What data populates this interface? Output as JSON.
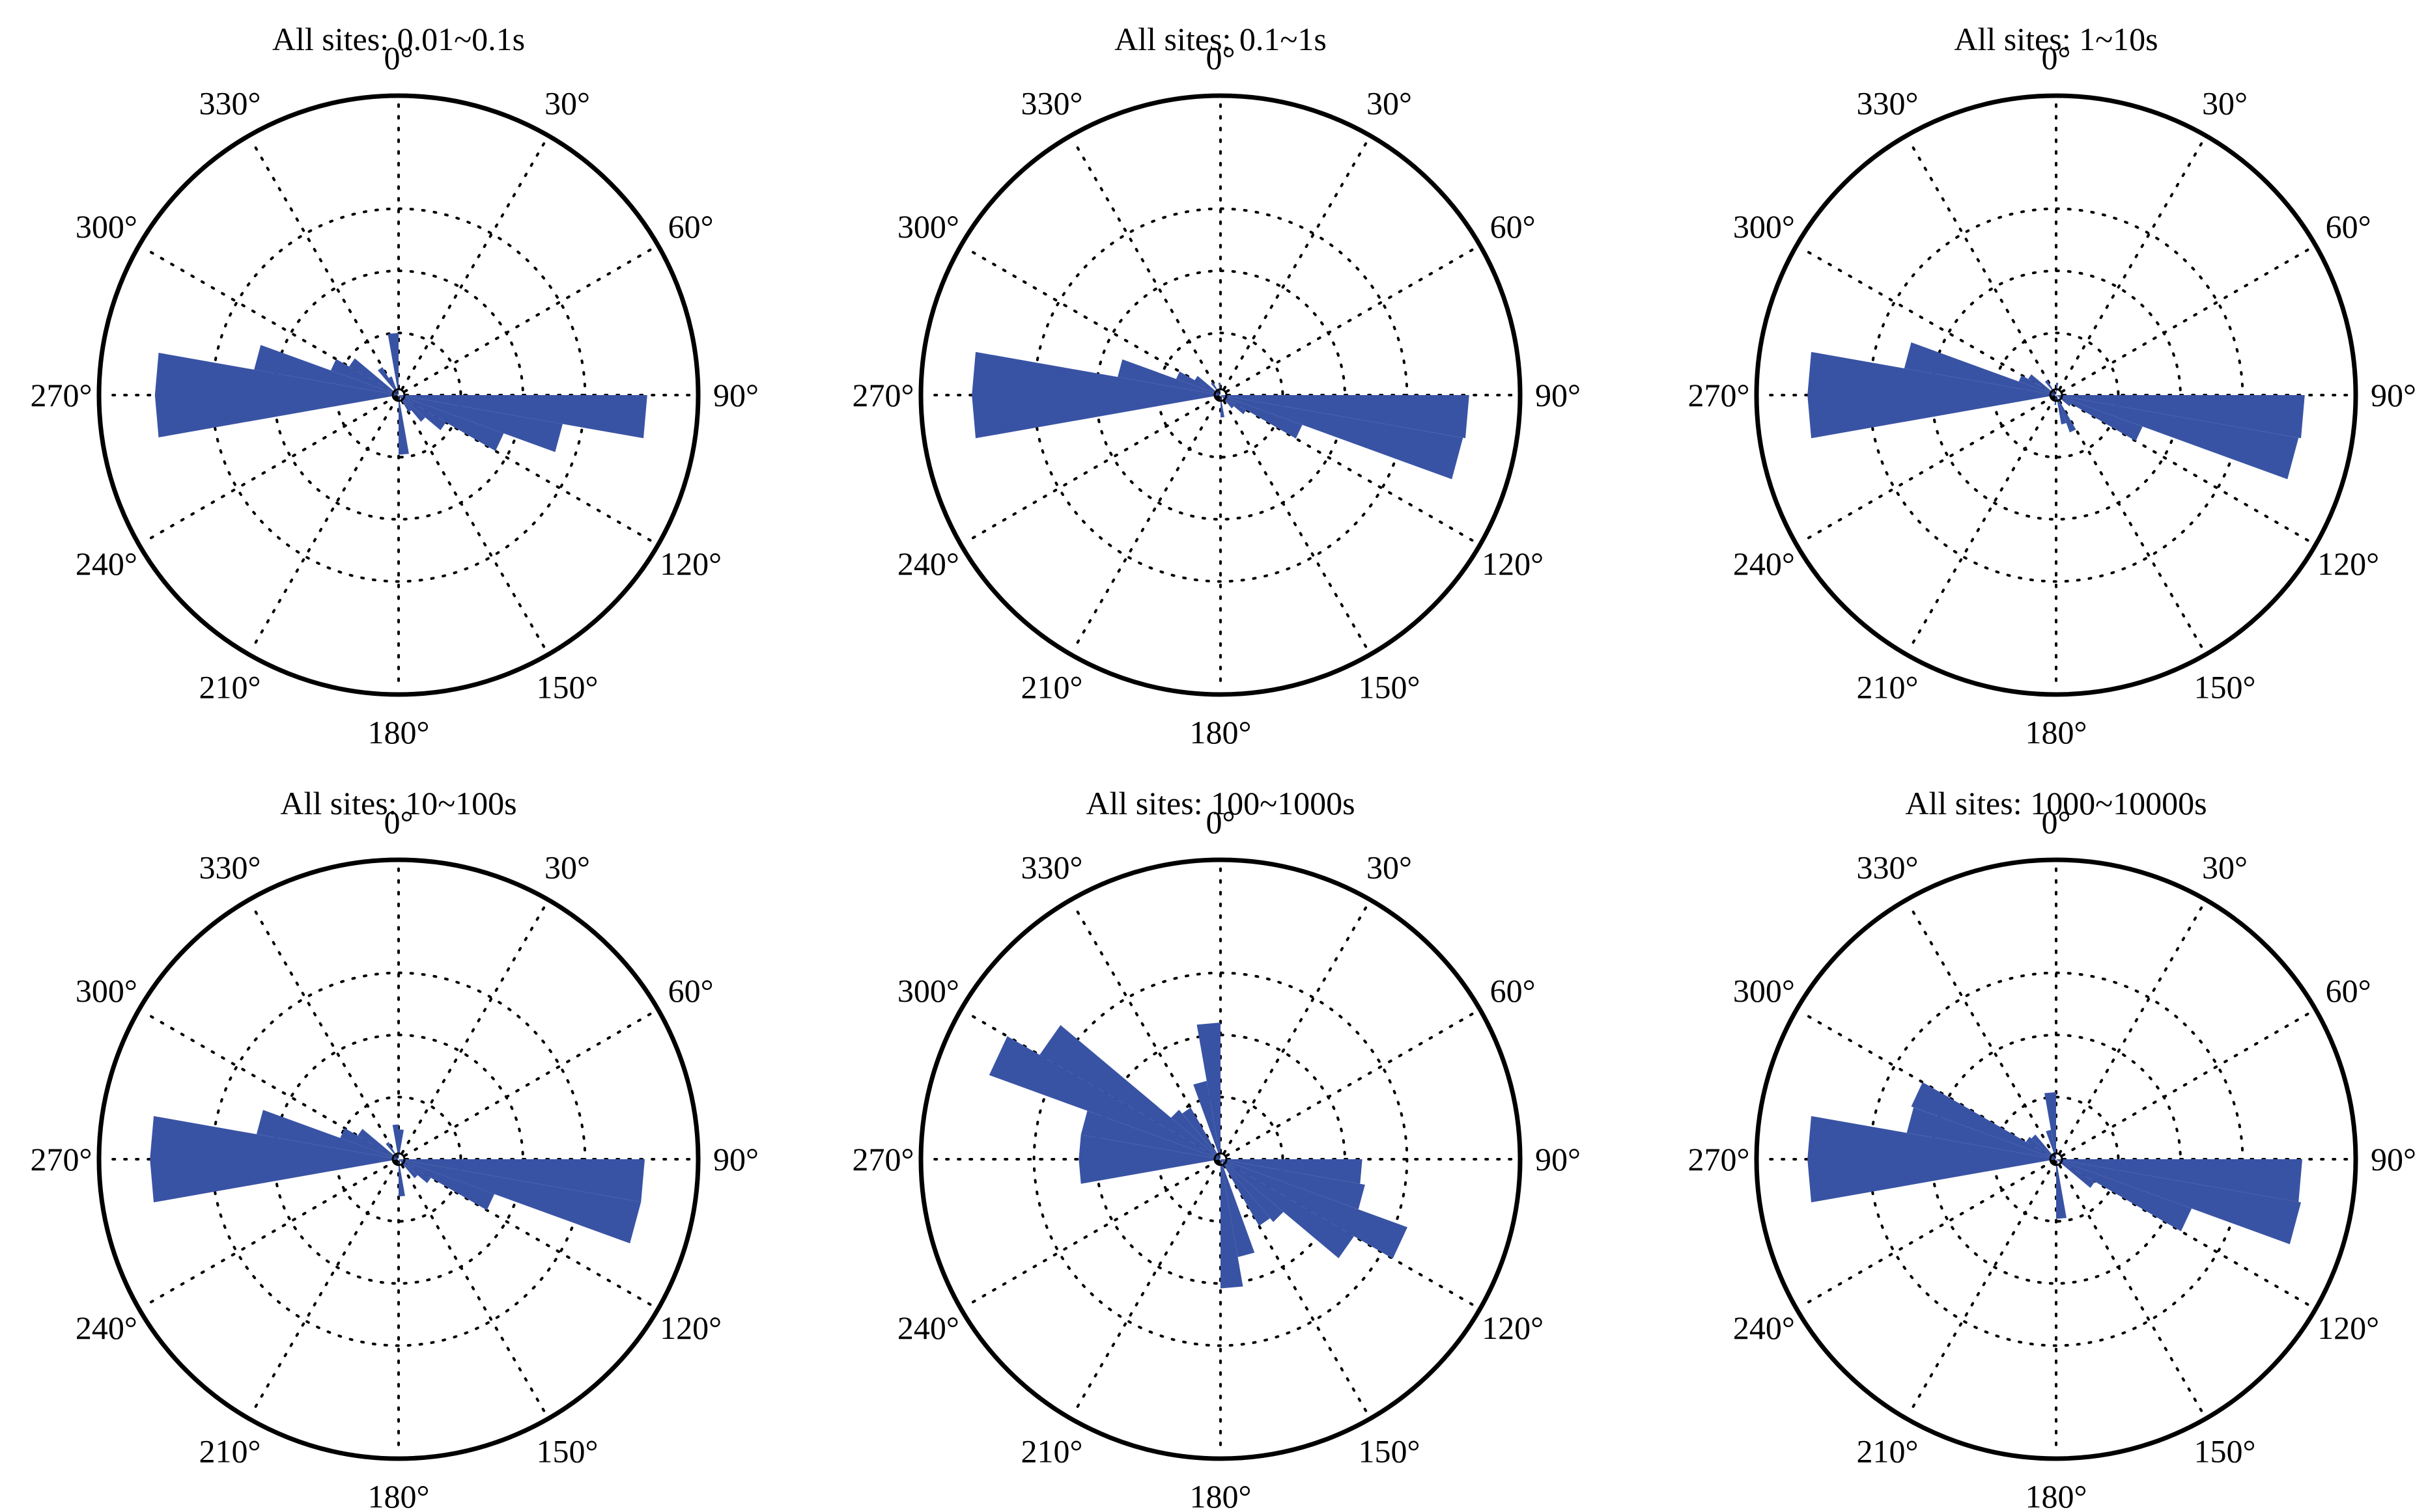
{
  "colors": {
    "petal": "#3953a4",
    "frame": "#000000",
    "grid": "#000000",
    "background": "#ffffff"
  },
  "chart_data": [
    {
      "type": "rose",
      "title": "All sites: 0.01~0.1s",
      "angle_labels": [
        "0°",
        "30°",
        "60°",
        "90°",
        "120°",
        "150°",
        "180°",
        "210°",
        "240°",
        "270°",
        "300°",
        "330°"
      ],
      "bin_width_deg": 10,
      "rmax": 1.0,
      "rings": [
        0.25,
        0.5,
        0.75
      ],
      "grid": true,
      "bins": [
        {
          "start": 0,
          "end": 10,
          "value": 0
        },
        {
          "start": 90,
          "end": 100,
          "value": 1.0
        },
        {
          "start": 100,
          "end": 110,
          "value": 0.67
        },
        {
          "start": 110,
          "end": 120,
          "value": 0.45
        },
        {
          "start": 120,
          "end": 130,
          "value": 0.22
        },
        {
          "start": 130,
          "end": 140,
          "value": 0.14
        },
        {
          "start": 140,
          "end": 150,
          "value": 0.08
        },
        {
          "start": 170,
          "end": 180,
          "value": 0.24
        },
        {
          "start": 260,
          "end": 270,
          "value": 0.98
        },
        {
          "start": 270,
          "end": 280,
          "value": 0.98
        },
        {
          "start": 280,
          "end": 290,
          "value": 0.59
        },
        {
          "start": 290,
          "end": 300,
          "value": 0.29
        },
        {
          "start": 300,
          "end": 310,
          "value": 0.23
        },
        {
          "start": 320,
          "end": 330,
          "value": 0.13
        },
        {
          "start": 330,
          "end": 340,
          "value": 0.08
        },
        {
          "start": 350,
          "end": 360,
          "value": 0.25
        }
      ]
    },
    {
      "type": "rose",
      "title": "All sites: 0.1~1s",
      "angle_labels": [
        "0°",
        "30°",
        "60°",
        "90°",
        "120°",
        "150°",
        "180°",
        "210°",
        "240°",
        "270°",
        "300°",
        "330°"
      ],
      "bin_width_deg": 10,
      "rmax": 1.0,
      "rings": [
        0.25,
        0.5,
        0.75
      ],
      "grid": true,
      "bins": [
        {
          "start": 90,
          "end": 100,
          "value": 1.0
        },
        {
          "start": 100,
          "end": 110,
          "value": 0.99
        },
        {
          "start": 110,
          "end": 120,
          "value": 0.35
        },
        {
          "start": 120,
          "end": 130,
          "value": 0.12
        },
        {
          "start": 130,
          "end": 140,
          "value": 0.07
        },
        {
          "start": 170,
          "end": 180,
          "value": 0.09
        },
        {
          "start": 260,
          "end": 270,
          "value": 1.0
        },
        {
          "start": 270,
          "end": 280,
          "value": 1.0
        },
        {
          "start": 280,
          "end": 290,
          "value": 0.42
        },
        {
          "start": 290,
          "end": 300,
          "value": 0.19
        },
        {
          "start": 300,
          "end": 310,
          "value": 0.12
        },
        {
          "start": 320,
          "end": 330,
          "value": 0.06
        },
        {
          "start": 350,
          "end": 360,
          "value": 0.05
        }
      ]
    },
    {
      "type": "rose",
      "title": "All sites: 1~10s",
      "angle_labels": [
        "0°",
        "30°",
        "60°",
        "90°",
        "120°",
        "150°",
        "180°",
        "210°",
        "240°",
        "270°",
        "300°",
        "330°"
      ],
      "bin_width_deg": 10,
      "rmax": 1.0,
      "rings": [
        0.25,
        0.5,
        0.75
      ],
      "grid": true,
      "bins": [
        {
          "start": 0,
          "end": 10,
          "value": 0.05
        },
        {
          "start": 90,
          "end": 100,
          "value": 1.0
        },
        {
          "start": 100,
          "end": 110,
          "value": 0.99
        },
        {
          "start": 110,
          "end": 120,
          "value": 0.37
        },
        {
          "start": 120,
          "end": 130,
          "value": 0.07
        },
        {
          "start": 150,
          "end": 160,
          "value": 0.16
        },
        {
          "start": 160,
          "end": 170,
          "value": 0.12
        },
        {
          "start": 180,
          "end": 190,
          "value": 0.04
        },
        {
          "start": 260,
          "end": 270,
          "value": 1.0
        },
        {
          "start": 270,
          "end": 280,
          "value": 1.0
        },
        {
          "start": 280,
          "end": 290,
          "value": 0.62
        },
        {
          "start": 290,
          "end": 300,
          "value": 0.16
        },
        {
          "start": 300,
          "end": 310,
          "value": 0.13
        },
        {
          "start": 320,
          "end": 330,
          "value": 0.07
        }
      ]
    },
    {
      "type": "rose",
      "title": "All sites: 10~100s",
      "angle_labels": [
        "0°",
        "30°",
        "60°",
        "90°",
        "120°",
        "150°",
        "180°",
        "210°",
        "240°",
        "270°",
        "300°",
        "330°"
      ],
      "bin_width_deg": 10,
      "rmax": 1.0,
      "rings": [
        0.25,
        0.5,
        0.75
      ],
      "grid": true,
      "bins": [
        {
          "start": 0,
          "end": 10,
          "value": 0.12
        },
        {
          "start": 90,
          "end": 100,
          "value": 0.99
        },
        {
          "start": 100,
          "end": 110,
          "value": 0.99
        },
        {
          "start": 110,
          "end": 120,
          "value": 0.41
        },
        {
          "start": 120,
          "end": 130,
          "value": 0.15
        },
        {
          "start": 130,
          "end": 140,
          "value": 0.1
        },
        {
          "start": 170,
          "end": 180,
          "value": 0.15
        },
        {
          "start": 260,
          "end": 270,
          "value": 1.0
        },
        {
          "start": 270,
          "end": 280,
          "value": 1.0
        },
        {
          "start": 280,
          "end": 290,
          "value": 0.58
        },
        {
          "start": 290,
          "end": 300,
          "value": 0.25
        },
        {
          "start": 300,
          "end": 310,
          "value": 0.19
        },
        {
          "start": 320,
          "end": 330,
          "value": 0.08
        },
        {
          "start": 350,
          "end": 360,
          "value": 0.14
        }
      ]
    },
    {
      "type": "rose",
      "title": "All sites: 100~1000s",
      "angle_labels": [
        "0°",
        "30°",
        "60°",
        "90°",
        "120°",
        "150°",
        "180°",
        "210°",
        "240°",
        "270°",
        "300°",
        "330°"
      ],
      "bin_width_deg": 10,
      "rmax": 1.0,
      "rings": [
        0.25,
        0.5,
        0.75
      ],
      "grid": true,
      "bins": [
        {
          "start": 0,
          "end": 10,
          "value": 0
        },
        {
          "start": 90,
          "end": 100,
          "value": 0.57
        },
        {
          "start": 100,
          "end": 110,
          "value": 0.59
        },
        {
          "start": 110,
          "end": 120,
          "value": 0.8
        },
        {
          "start": 120,
          "end": 130,
          "value": 0.62
        },
        {
          "start": 130,
          "end": 140,
          "value": 0.33
        },
        {
          "start": 140,
          "end": 150,
          "value": 0.31
        },
        {
          "start": 160,
          "end": 170,
          "value": 0.4
        },
        {
          "start": 170,
          "end": 180,
          "value": 0.52
        },
        {
          "start": 260,
          "end": 270,
          "value": 0.57
        },
        {
          "start": 270,
          "end": 280,
          "value": 0.57
        },
        {
          "start": 280,
          "end": 290,
          "value": 0.57
        },
        {
          "start": 290,
          "end": 300,
          "value": 0.99
        },
        {
          "start": 300,
          "end": 310,
          "value": 0.84
        },
        {
          "start": 310,
          "end": 320,
          "value": 0.26
        },
        {
          "start": 320,
          "end": 330,
          "value": 0.24
        },
        {
          "start": 340,
          "end": 350,
          "value": 0.32
        },
        {
          "start": 350,
          "end": 360,
          "value": 0.55
        }
      ]
    },
    {
      "type": "rose",
      "title": "All sites: 1000~10000s",
      "angle_labels": [
        "0°",
        "30°",
        "60°",
        "90°",
        "120°",
        "150°",
        "180°",
        "210°",
        "240°",
        "270°",
        "300°",
        "330°"
      ],
      "bin_width_deg": 10,
      "rmax": 1.0,
      "rings": [
        0.25,
        0.5,
        0.75
      ],
      "grid": true,
      "bins": [
        {
          "start": 0,
          "end": 10,
          "value": 0
        },
        {
          "start": 90,
          "end": 100,
          "value": 0.99
        },
        {
          "start": 100,
          "end": 110,
          "value": 1.0
        },
        {
          "start": 110,
          "end": 120,
          "value": 0.58
        },
        {
          "start": 120,
          "end": 130,
          "value": 0.18
        },
        {
          "start": 170,
          "end": 180,
          "value": 0.24
        },
        {
          "start": 260,
          "end": 270,
          "value": 1.0
        },
        {
          "start": 270,
          "end": 280,
          "value": 1.0
        },
        {
          "start": 280,
          "end": 290,
          "value": 0.61
        },
        {
          "start": 290,
          "end": 300,
          "value": 0.62
        },
        {
          "start": 300,
          "end": 310,
          "value": 0.14
        },
        {
          "start": 310,
          "end": 320,
          "value": 0.13
        },
        {
          "start": 340,
          "end": 350,
          "value": 0.12
        },
        {
          "start": 350,
          "end": 360,
          "value": 0.27
        }
      ]
    }
  ]
}
